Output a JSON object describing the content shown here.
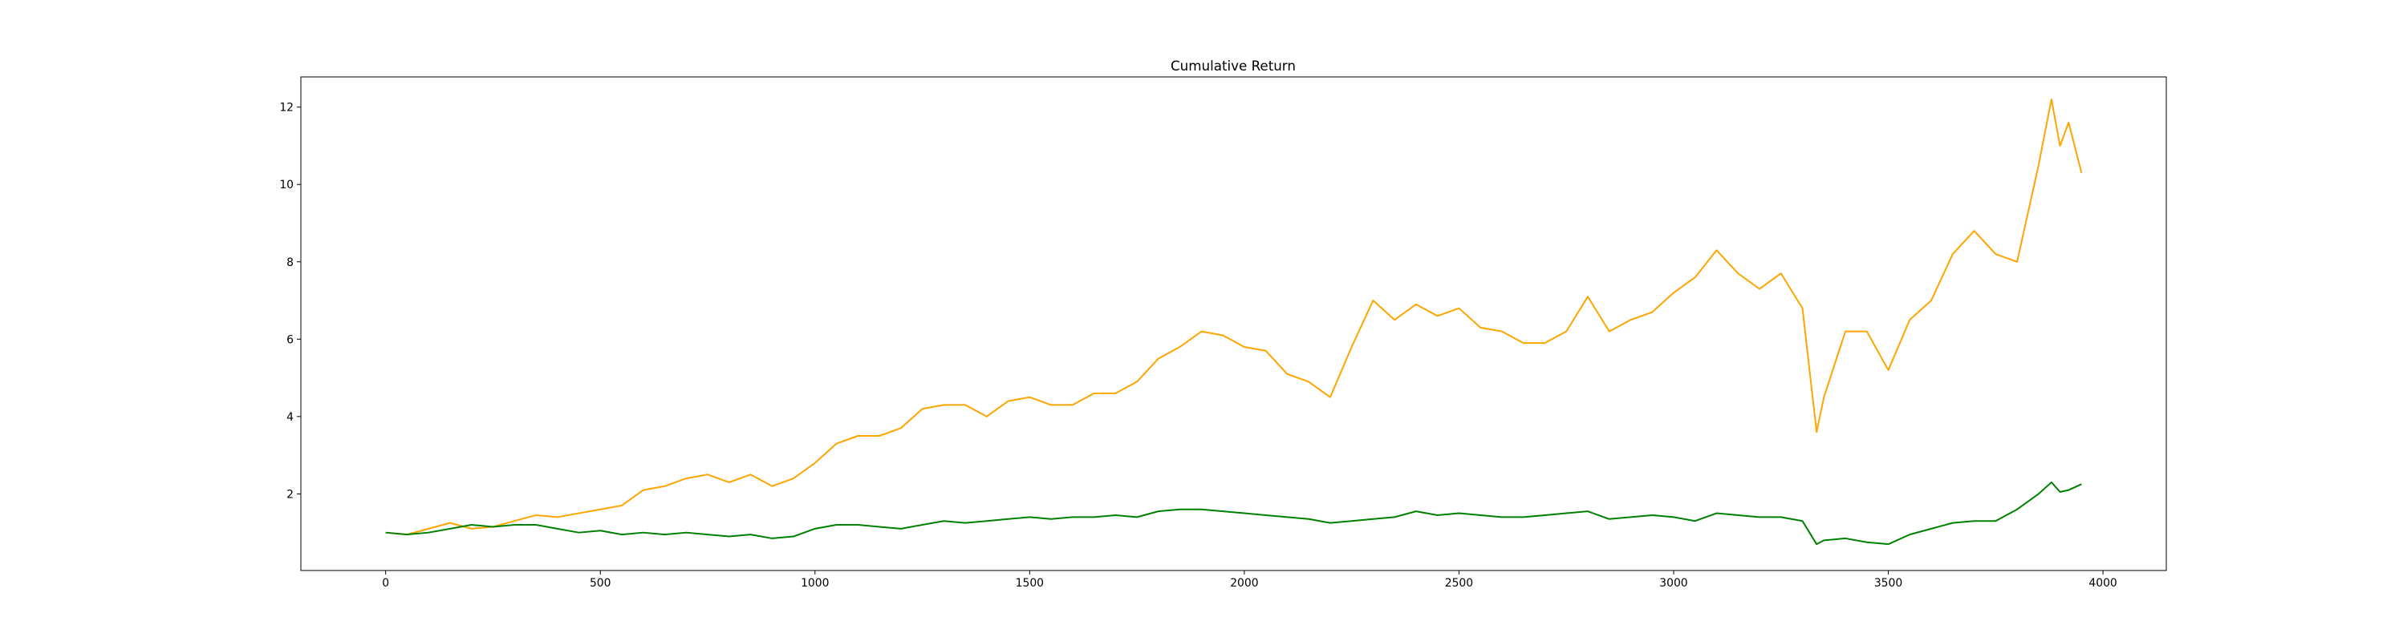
{
  "chart_data": {
    "type": "line",
    "title": "Cumulative Return",
    "x": [
      0,
      50,
      100,
      150,
      200,
      250,
      300,
      350,
      400,
      450,
      500,
      550,
      600,
      650,
      700,
      750,
      800,
      850,
      900,
      950,
      1000,
      1050,
      1100,
      1150,
      1200,
      1250,
      1300,
      1350,
      1400,
      1450,
      1500,
      1550,
      1600,
      1650,
      1700,
      1750,
      1800,
      1850,
      1900,
      1950,
      2000,
      2050,
      2100,
      2150,
      2200,
      2250,
      2300,
      2350,
      2400,
      2450,
      2500,
      2550,
      2600,
      2650,
      2700,
      2750,
      2800,
      2850,
      2900,
      2950,
      3000,
      3050,
      3100,
      3150,
      3200,
      3250,
      3300,
      3333,
      3350,
      3400,
      3450,
      3500,
      3550,
      3600,
      3650,
      3700,
      3750,
      3800,
      3850,
      3880,
      3900,
      3920,
      3950
    ],
    "series": [
      {
        "color": "#ffa500",
        "values": [
          1.0,
          0.95,
          1.1,
          1.25,
          1.1,
          1.15,
          1.3,
          1.45,
          1.4,
          1.5,
          1.6,
          1.7,
          2.1,
          2.2,
          2.4,
          2.5,
          2.3,
          2.5,
          2.2,
          2.4,
          2.8,
          3.3,
          3.5,
          3.5,
          3.7,
          4.2,
          4.3,
          4.3,
          4.0,
          4.4,
          4.5,
          4.3,
          4.3,
          4.6,
          4.6,
          4.9,
          5.5,
          5.8,
          6.2,
          6.1,
          5.8,
          5.7,
          5.1,
          4.9,
          4.5,
          5.8,
          7.0,
          6.5,
          6.9,
          6.6,
          6.8,
          6.3,
          6.2,
          5.9,
          5.9,
          6.2,
          7.1,
          6.2,
          6.5,
          6.7,
          7.2,
          7.6,
          8.3,
          7.7,
          7.3,
          7.7,
          6.8,
          3.6,
          4.5,
          6.2,
          6.2,
          5.2,
          6.5,
          7.0,
          8.2,
          8.8,
          8.2,
          8.0,
          10.5,
          12.2,
          11.0,
          11.6,
          10.3
        ]
      },
      {
        "color": "#008000",
        "values": [
          1.0,
          0.95,
          1.0,
          1.1,
          1.2,
          1.15,
          1.2,
          1.2,
          1.1,
          1.0,
          1.05,
          0.95,
          1.0,
          0.95,
          1.0,
          0.95,
          0.9,
          0.95,
          0.85,
          0.9,
          1.1,
          1.2,
          1.2,
          1.15,
          1.1,
          1.2,
          1.3,
          1.25,
          1.3,
          1.35,
          1.4,
          1.35,
          1.4,
          1.4,
          1.45,
          1.4,
          1.55,
          1.6,
          1.6,
          1.55,
          1.5,
          1.45,
          1.4,
          1.35,
          1.25,
          1.3,
          1.35,
          1.4,
          1.55,
          1.45,
          1.5,
          1.45,
          1.4,
          1.4,
          1.45,
          1.5,
          1.55,
          1.35,
          1.4,
          1.45,
          1.4,
          1.3,
          1.5,
          1.45,
          1.4,
          1.4,
          1.3,
          0.7,
          0.8,
          0.85,
          0.75,
          0.7,
          0.95,
          1.1,
          1.25,
          1.3,
          1.3,
          1.6,
          2.0,
          2.3,
          2.05,
          2.1,
          2.25
        ]
      }
    ],
    "xlim": [
      -197.5,
      4147.5
    ],
    "xticks": [
      0,
      500,
      1000,
      1500,
      2000,
      2500,
      3000,
      3500,
      4000
    ],
    "ylim": [
      0.02,
      12.78
    ],
    "yticks": [
      2,
      4,
      6,
      8,
      10,
      12
    ],
    "grid": false
  }
}
